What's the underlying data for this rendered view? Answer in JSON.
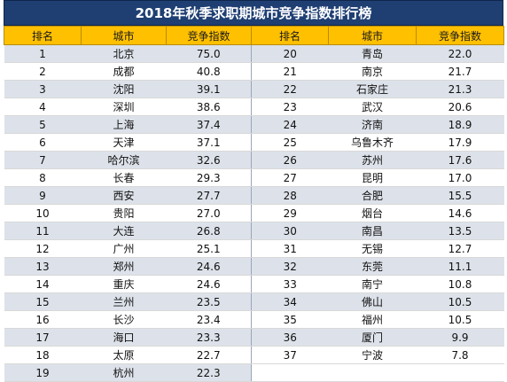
{
  "title": "2018年秋季求职期城市竞争指数排行榜",
  "headers": [
    "排名",
    "城市",
    "竞争指数",
    "排名",
    "城市",
    "竞争指数"
  ],
  "left": [
    {
      "rank": "1",
      "city": "北京",
      "index": "75.0"
    },
    {
      "rank": "2",
      "city": "成都",
      "index": "40.8"
    },
    {
      "rank": "3",
      "city": "沈阳",
      "index": "39.1"
    },
    {
      "rank": "4",
      "city": "深圳",
      "index": "38.6"
    },
    {
      "rank": "5",
      "city": "上海",
      "index": "37.4"
    },
    {
      "rank": "6",
      "city": "天津",
      "index": "37.1"
    },
    {
      "rank": "7",
      "city": "哈尔滨",
      "index": "32.6"
    },
    {
      "rank": "8",
      "city": "长春",
      "index": "29.3"
    },
    {
      "rank": "9",
      "city": "西安",
      "index": "27.7"
    },
    {
      "rank": "10",
      "city": "贵阳",
      "index": "27.0"
    },
    {
      "rank": "11",
      "city": "大连",
      "index": "26.8"
    },
    {
      "rank": "12",
      "city": "广州",
      "index": "25.1"
    },
    {
      "rank": "13",
      "city": "郑州",
      "index": "24.6"
    },
    {
      "rank": "14",
      "city": "重庆",
      "index": "24.6"
    },
    {
      "rank": "15",
      "city": "兰州",
      "index": "23.5"
    },
    {
      "rank": "16",
      "city": "长沙",
      "index": "23.4"
    },
    {
      "rank": "17",
      "city": "海口",
      "index": "23.3"
    },
    {
      "rank": "18",
      "city": "太原",
      "index": "22.7"
    },
    {
      "rank": "19",
      "city": "杭州",
      "index": "22.3"
    }
  ],
  "right": [
    {
      "rank": "20",
      "city": "青岛",
      "index": "22.0"
    },
    {
      "rank": "21",
      "city": "南京",
      "index": "21.7"
    },
    {
      "rank": "22",
      "city": "石家庄",
      "index": "21.3"
    },
    {
      "rank": "23",
      "city": "武汉",
      "index": "20.6"
    },
    {
      "rank": "24",
      "city": "济南",
      "index": "18.9"
    },
    {
      "rank": "25",
      "city": "乌鲁木齐",
      "index": "17.9"
    },
    {
      "rank": "26",
      "city": "苏州",
      "index": "17.6"
    },
    {
      "rank": "27",
      "city": "昆明",
      "index": "17.0"
    },
    {
      "rank": "28",
      "city": "合肥",
      "index": "15.5"
    },
    {
      "rank": "29",
      "city": "烟台",
      "index": "14.6"
    },
    {
      "rank": "30",
      "city": "南昌",
      "index": "13.5"
    },
    {
      "rank": "31",
      "city": "无锡",
      "index": "12.7"
    },
    {
      "rank": "32",
      "city": "东莞",
      "index": "11.1"
    },
    {
      "rank": "33",
      "city": "南宁",
      "index": "10.8"
    },
    {
      "rank": "34",
      "city": "佛山",
      "index": "10.5"
    },
    {
      "rank": "35",
      "city": "福州",
      "index": "10.5"
    },
    {
      "rank": "36",
      "city": "厦门",
      "index": "9.9"
    },
    {
      "rank": "37",
      "city": "宁波",
      "index": "7.8"
    }
  ],
  "colors": {
    "title_bg": "#1f3f73",
    "header_bg": "#ffc000",
    "stripe_bg": "#dde2ea"
  }
}
